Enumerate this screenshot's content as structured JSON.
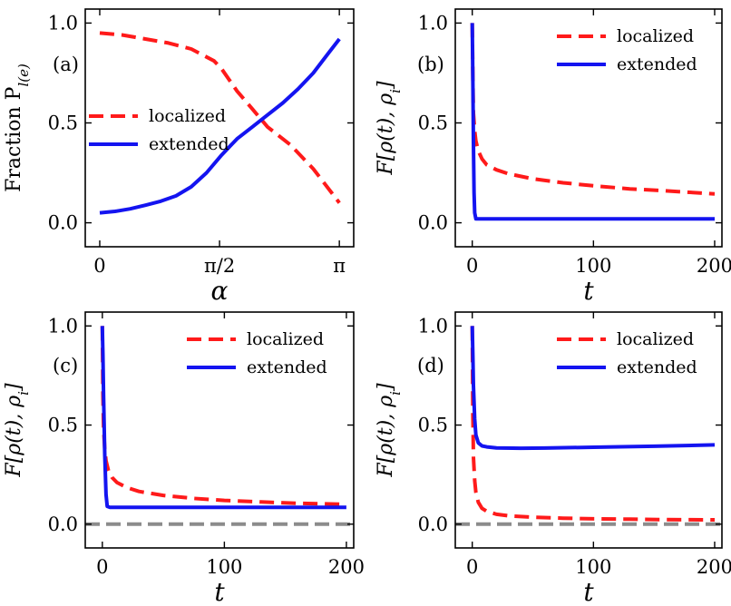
{
  "colors": {
    "localized": "#ff1a1a",
    "extended": "#1414f0",
    "reference": "#8c8c8c"
  },
  "chart_data": [
    {
      "id": "a",
      "type": "line",
      "panel_label": "(a)",
      "xlabel": "α",
      "ylabel": "Fraction P",
      "ylabel_subscript": "l(e)",
      "xlim": [
        -0.19,
        3.33
      ],
      "ylim": [
        -0.12,
        1.07
      ],
      "xticks": [
        0,
        1.5708,
        3.1416
      ],
      "xtick_labels": [
        "0",
        "π/2",
        "π"
      ],
      "yticks": [
        0.0,
        0.5,
        1.0
      ],
      "ytick_labels": [
        "0.0",
        "0.5",
        "1.0"
      ],
      "legend": {
        "position": "center-left",
        "entries": [
          "localized",
          "extended"
        ]
      },
      "series": [
        {
          "name": "localized",
          "style": "dashed",
          "x": [
            0,
            0.3,
            0.6,
            0.9,
            1.2,
            1.5,
            1.6,
            1.8,
            2.0,
            2.2,
            2.5,
            2.8,
            3.1416
          ],
          "y": [
            0.95,
            0.94,
            0.92,
            0.9,
            0.87,
            0.81,
            0.77,
            0.66,
            0.57,
            0.48,
            0.39,
            0.27,
            0.1
          ]
        },
        {
          "name": "extended",
          "style": "solid",
          "x": [
            0,
            0.2,
            0.4,
            0.6,
            0.8,
            1.0,
            1.2,
            1.4,
            1.6,
            1.8,
            2.0,
            2.2,
            2.4,
            2.6,
            2.8,
            3.0,
            3.1416
          ],
          "y": [
            0.05,
            0.057,
            0.07,
            0.088,
            0.108,
            0.135,
            0.18,
            0.25,
            0.34,
            0.42,
            0.48,
            0.54,
            0.6,
            0.67,
            0.75,
            0.85,
            0.92
          ]
        }
      ]
    },
    {
      "id": "b",
      "type": "line",
      "panel_label": "(b)",
      "xlabel": "t",
      "ylabel": "F[ρ(t), ρ",
      "ylabel_subscript": "i",
      "ylabel_suffix": "]",
      "xlim": [
        -14,
        206
      ],
      "ylim": [
        -0.12,
        1.07
      ],
      "xticks": [
        0,
        100,
        200
      ],
      "xtick_labels": [
        "0",
        "100",
        "200"
      ],
      "yticks": [
        0.0,
        0.5,
        1.0
      ],
      "ytick_labels": [
        "0.0",
        "0.5",
        "1.0"
      ],
      "legend": {
        "position": "top-right",
        "entries": [
          "localized",
          "extended"
        ]
      },
      "series": [
        {
          "name": "localized",
          "style": "dashed",
          "x": [
            0,
            0.5,
            1,
            2,
            3,
            5,
            8,
            12,
            20,
            30,
            50,
            75,
            100,
            130,
            160,
            200
          ],
          "y": [
            1.0,
            0.72,
            0.55,
            0.46,
            0.41,
            0.36,
            0.32,
            0.29,
            0.265,
            0.245,
            0.22,
            0.2,
            0.185,
            0.17,
            0.16,
            0.145
          ]
        },
        {
          "name": "extended",
          "style": "solid",
          "x": [
            0,
            0.5,
            1,
            1.5,
            2,
            3,
            5,
            10,
            50,
            100,
            150,
            200
          ],
          "y": [
            1.0,
            0.7,
            0.4,
            0.15,
            0.05,
            0.02,
            0.02,
            0.02,
            0.02,
            0.02,
            0.02,
            0.02
          ]
        }
      ]
    },
    {
      "id": "c",
      "type": "line",
      "panel_label": "(c)",
      "xlabel": "t",
      "ylabel": "F[ρ(t), ρ",
      "ylabel_subscript": "i",
      "ylabel_suffix": "]",
      "xlim": [
        -14,
        206
      ],
      "ylim": [
        -0.12,
        1.07
      ],
      "xticks": [
        0,
        100,
        200
      ],
      "xtick_labels": [
        "0",
        "100",
        "200"
      ],
      "yticks": [
        0.0,
        0.5,
        1.0
      ],
      "ytick_labels": [
        "0.0",
        "0.5",
        "1.0"
      ],
      "reference_line": 0.0,
      "legend": {
        "position": "top-right",
        "entries": [
          "localized",
          "extended"
        ]
      },
      "series": [
        {
          "name": "localized",
          "style": "dashed",
          "x": [
            0,
            0.5,
            1,
            2,
            3,
            5,
            8,
            12,
            20,
            30,
            50,
            75,
            100,
            130,
            160,
            200
          ],
          "y": [
            1.0,
            0.65,
            0.48,
            0.38,
            0.32,
            0.27,
            0.235,
            0.21,
            0.185,
            0.165,
            0.145,
            0.13,
            0.12,
            0.112,
            0.105,
            0.1
          ]
        },
        {
          "name": "extended",
          "style": "solid",
          "x": [
            0,
            0.5,
            1,
            2,
            3,
            4,
            6,
            10,
            50,
            100,
            150,
            200
          ],
          "y": [
            1.0,
            0.85,
            0.65,
            0.35,
            0.15,
            0.09,
            0.085,
            0.085,
            0.085,
            0.085,
            0.085,
            0.085
          ]
        }
      ]
    },
    {
      "id": "d",
      "type": "line",
      "panel_label": "(d)",
      "xlabel": "t",
      "ylabel": "F[ρ(t), ρ",
      "ylabel_subscript": "i",
      "ylabel_suffix": "]",
      "xlim": [
        -14,
        206
      ],
      "ylim": [
        -0.12,
        1.07
      ],
      "xticks": [
        0,
        100,
        200
      ],
      "xtick_labels": [
        "0",
        "100",
        "200"
      ],
      "yticks": [
        0.0,
        0.5,
        1.0
      ],
      "ytick_labels": [
        "0.0",
        "0.5",
        "1.0"
      ],
      "reference_line": 0.0,
      "legend": {
        "position": "top-right",
        "entries": [
          "localized",
          "extended"
        ]
      },
      "series": [
        {
          "name": "localized",
          "style": "dashed",
          "x": [
            0,
            0.5,
            1,
            2,
            3,
            5,
            8,
            12,
            20,
            30,
            50,
            75,
            100,
            130,
            160,
            200
          ],
          "y": [
            1.0,
            0.55,
            0.34,
            0.22,
            0.16,
            0.11,
            0.08,
            0.065,
            0.05,
            0.042,
            0.035,
            0.03,
            0.027,
            0.025,
            0.023,
            0.022
          ]
        },
        {
          "name": "extended",
          "style": "solid",
          "x": [
            0,
            0.5,
            1,
            2,
            3,
            5,
            8,
            12,
            20,
            40,
            60,
            100,
            150,
            200
          ],
          "y": [
            1.0,
            0.85,
            0.7,
            0.53,
            0.45,
            0.41,
            0.395,
            0.39,
            0.385,
            0.383,
            0.384,
            0.388,
            0.393,
            0.4
          ]
        }
      ]
    }
  ]
}
